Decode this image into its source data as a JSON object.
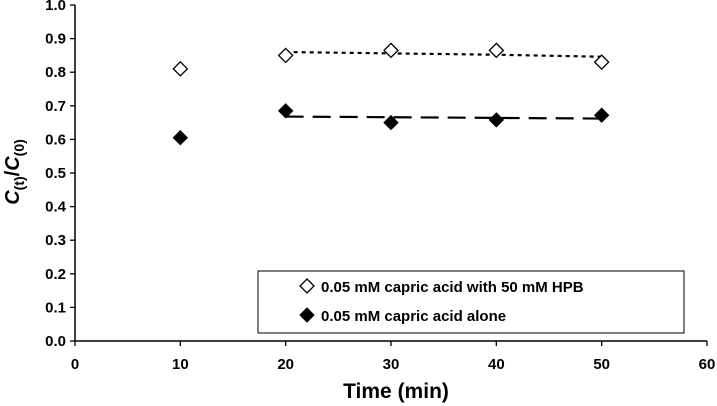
{
  "chart_data": {
    "type": "scatter",
    "xlabel": "Time (min)",
    "ylabel_parts": {
      "c1": "C",
      "sub1": "(t)",
      "slash": "/",
      "c2": "C",
      "sub2": "(0)"
    },
    "xlim": [
      0,
      60
    ],
    "ylim": [
      0,
      1.0
    ],
    "x_ticks": [
      "0",
      "10",
      "20",
      "30",
      "40",
      "50",
      "60"
    ],
    "y_ticks": [
      "0.0",
      "0.1",
      "0.2",
      "0.3",
      "0.4",
      "0.5",
      "0.6",
      "0.7",
      "0.8",
      "0.9",
      "1.0"
    ],
    "grid": false,
    "legend_position": "bottom-right",
    "series": [
      {
        "name": "0.05 mM  capric acid with 50 mM HPB",
        "marker": "open-diamond",
        "x": [
          10,
          20,
          30,
          40,
          50
        ],
        "y": [
          0.81,
          0.85,
          0.865,
          0.865,
          0.83
        ],
        "trend": {
          "style": "dotted",
          "x": [
            20,
            30,
            40,
            50
          ],
          "y": [
            0.86,
            0.856,
            0.852,
            0.846
          ]
        }
      },
      {
        "name": "0.05 mM  capric acid alone",
        "marker": "filled-diamond",
        "x": [
          10,
          20,
          30,
          40,
          50
        ],
        "y": [
          0.605,
          0.685,
          0.65,
          0.658,
          0.672
        ],
        "trend": {
          "style": "dashed",
          "x": [
            20,
            30,
            40,
            50
          ],
          "y": [
            0.668,
            0.666,
            0.664,
            0.662
          ]
        }
      }
    ]
  }
}
